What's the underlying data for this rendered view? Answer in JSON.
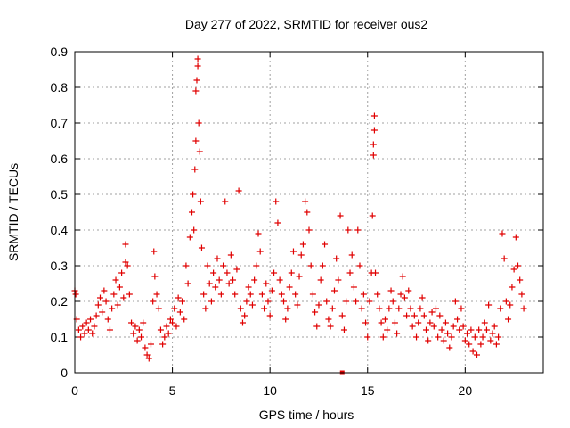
{
  "chart_data": {
    "type": "scatter",
    "title": "Day 277 of 2022, SRMTID for receiver ous2",
    "xlabel": "GPS time / hours",
    "ylabel": "SRMTID / TECUs",
    "xlim": [
      0,
      24
    ],
    "ylim": [
      0,
      0.9
    ],
    "x_ticks": [
      0,
      5,
      10,
      15,
      20
    ],
    "x_tick_labels": [
      "0",
      "5",
      "10",
      "15",
      "20"
    ],
    "y_ticks": [
      0,
      0.1,
      0.2,
      0.3,
      0.4,
      0.5,
      0.6,
      0.7,
      0.8,
      0.9
    ],
    "y_tick_labels": [
      "0",
      "0.1",
      "0.2",
      "0.3",
      "0.4",
      "0.5",
      "0.6",
      "0.7",
      "0.8",
      "0.9"
    ],
    "grid": true,
    "marker": "+",
    "color": "#e00000",
    "series": [
      {
        "name": "SRMTID",
        "points": [
          [
            0.0,
            0.23
          ],
          [
            0.05,
            0.22
          ],
          [
            0.1,
            0.15
          ],
          [
            0.2,
            0.12
          ],
          [
            0.3,
            0.1
          ],
          [
            0.4,
            0.13
          ],
          [
            0.5,
            0.11
          ],
          [
            0.6,
            0.14
          ],
          [
            0.7,
            0.12
          ],
          [
            0.8,
            0.15
          ],
          [
            0.9,
            0.11
          ],
          [
            1.0,
            0.13
          ],
          [
            1.1,
            0.16
          ],
          [
            1.2,
            0.19
          ],
          [
            1.3,
            0.21
          ],
          [
            1.4,
            0.17
          ],
          [
            1.5,
            0.23
          ],
          [
            1.6,
            0.2
          ],
          [
            1.7,
            0.15
          ],
          [
            1.8,
            0.12
          ],
          [
            1.9,
            0.18
          ],
          [
            2.0,
            0.22
          ],
          [
            2.1,
            0.26
          ],
          [
            2.2,
            0.19
          ],
          [
            2.3,
            0.24
          ],
          [
            2.4,
            0.28
          ],
          [
            2.5,
            0.21
          ],
          [
            2.6,
            0.31
          ],
          [
            2.6,
            0.36
          ],
          [
            2.7,
            0.3
          ],
          [
            2.8,
            0.22
          ],
          [
            2.9,
            0.14
          ],
          [
            3.0,
            0.11
          ],
          [
            3.1,
            0.13
          ],
          [
            3.2,
            0.09
          ],
          [
            3.3,
            0.12
          ],
          [
            3.4,
            0.1
          ],
          [
            3.5,
            0.14
          ],
          [
            3.6,
            0.07
          ],
          [
            3.7,
            0.05
          ],
          [
            3.8,
            0.04
          ],
          [
            3.9,
            0.08
          ],
          [
            4.0,
            0.2
          ],
          [
            4.05,
            0.34
          ],
          [
            4.1,
            0.27
          ],
          [
            4.2,
            0.22
          ],
          [
            4.3,
            0.18
          ],
          [
            4.4,
            0.12
          ],
          [
            4.5,
            0.08
          ],
          [
            4.6,
            0.1
          ],
          [
            4.7,
            0.13
          ],
          [
            4.8,
            0.11
          ],
          [
            4.9,
            0.15
          ],
          [
            5.0,
            0.14
          ],
          [
            5.1,
            0.18
          ],
          [
            5.2,
            0.13
          ],
          [
            5.3,
            0.21
          ],
          [
            5.4,
            0.17
          ],
          [
            5.5,
            0.2
          ],
          [
            5.6,
            0.15
          ],
          [
            5.7,
            0.3
          ],
          [
            5.8,
            0.25
          ],
          [
            5.9,
            0.38
          ],
          [
            6.0,
            0.45
          ],
          [
            6.05,
            0.5
          ],
          [
            6.1,
            0.4
          ],
          [
            6.15,
            0.57
          ],
          [
            6.2,
            0.65
          ],
          [
            6.2,
            0.79
          ],
          [
            6.25,
            0.82
          ],
          [
            6.3,
            0.86
          ],
          [
            6.3,
            0.88
          ],
          [
            6.35,
            0.7
          ],
          [
            6.4,
            0.62
          ],
          [
            6.45,
            0.48
          ],
          [
            6.5,
            0.35
          ],
          [
            6.6,
            0.22
          ],
          [
            6.7,
            0.18
          ],
          [
            6.8,
            0.3
          ],
          [
            6.9,
            0.25
          ],
          [
            7.0,
            0.2
          ],
          [
            7.1,
            0.28
          ],
          [
            7.2,
            0.24
          ],
          [
            7.3,
            0.32
          ],
          [
            7.4,
            0.26
          ],
          [
            7.5,
            0.22
          ],
          [
            7.6,
            0.3
          ],
          [
            7.7,
            0.48
          ],
          [
            7.8,
            0.28
          ],
          [
            7.9,
            0.25
          ],
          [
            8.0,
            0.33
          ],
          [
            8.1,
            0.26
          ],
          [
            8.2,
            0.22
          ],
          [
            8.3,
            0.29
          ],
          [
            8.4,
            0.51
          ],
          [
            8.5,
            0.18
          ],
          [
            8.6,
            0.14
          ],
          [
            8.7,
            0.16
          ],
          [
            8.8,
            0.2
          ],
          [
            8.9,
            0.24
          ],
          [
            9.0,
            0.22
          ],
          [
            9.1,
            0.19
          ],
          [
            9.2,
            0.26
          ],
          [
            9.3,
            0.3
          ],
          [
            9.4,
            0.39
          ],
          [
            9.5,
            0.34
          ],
          [
            9.6,
            0.22
          ],
          [
            9.7,
            0.18
          ],
          [
            9.8,
            0.25
          ],
          [
            9.9,
            0.2
          ],
          [
            10.0,
            0.16
          ],
          [
            10.1,
            0.23
          ],
          [
            10.2,
            0.28
          ],
          [
            10.3,
            0.48
          ],
          [
            10.4,
            0.42
          ],
          [
            10.5,
            0.26
          ],
          [
            10.6,
            0.22
          ],
          [
            10.7,
            0.2
          ],
          [
            10.8,
            0.15
          ],
          [
            10.9,
            0.18
          ],
          [
            11.0,
            0.24
          ],
          [
            11.1,
            0.28
          ],
          [
            11.2,
            0.34
          ],
          [
            11.3,
            0.22
          ],
          [
            11.4,
            0.19
          ],
          [
            11.5,
            0.27
          ],
          [
            11.6,
            0.33
          ],
          [
            11.7,
            0.36
          ],
          [
            11.8,
            0.48
          ],
          [
            11.9,
            0.45
          ],
          [
            12.0,
            0.4
          ],
          [
            12.1,
            0.3
          ],
          [
            12.2,
            0.22
          ],
          [
            12.3,
            0.17
          ],
          [
            12.4,
            0.13
          ],
          [
            12.5,
            0.19
          ],
          [
            12.6,
            0.26
          ],
          [
            12.7,
            0.3
          ],
          [
            12.8,
            0.36
          ],
          [
            12.9,
            0.2
          ],
          [
            13.0,
            0.15
          ],
          [
            13.1,
            0.13
          ],
          [
            13.2,
            0.18
          ],
          [
            13.3,
            0.23
          ],
          [
            13.4,
            0.32
          ],
          [
            13.5,
            0.26
          ],
          [
            13.6,
            0.44
          ],
          [
            13.7,
            0.16
          ],
          [
            13.8,
            0.12
          ],
          [
            13.9,
            0.2
          ],
          [
            14.0,
            0.4
          ],
          [
            14.1,
            0.28
          ],
          [
            14.2,
            0.33
          ],
          [
            14.3,
            0.24
          ],
          [
            14.4,
            0.2
          ],
          [
            14.5,
            0.4
          ],
          [
            14.6,
            0.3
          ],
          [
            14.7,
            0.18
          ],
          [
            14.8,
            0.22
          ],
          [
            14.9,
            0.14
          ],
          [
            15.0,
            0.1
          ],
          [
            15.1,
            0.2
          ],
          [
            15.2,
            0.28
          ],
          [
            15.25,
            0.44
          ],
          [
            15.3,
            0.61
          ],
          [
            15.3,
            0.64
          ],
          [
            15.35,
            0.68
          ],
          [
            15.35,
            0.72
          ],
          [
            15.4,
            0.28
          ],
          [
            15.5,
            0.22
          ],
          [
            15.6,
            0.18
          ],
          [
            15.7,
            0.14
          ],
          [
            15.8,
            0.1
          ],
          [
            15.9,
            0.15
          ],
          [
            16.0,
            0.12
          ],
          [
            16.1,
            0.18
          ],
          [
            16.2,
            0.23
          ],
          [
            16.3,
            0.2
          ],
          [
            16.4,
            0.14
          ],
          [
            16.5,
            0.11
          ],
          [
            16.6,
            0.18
          ],
          [
            16.7,
            0.22
          ],
          [
            16.8,
            0.27
          ],
          [
            16.9,
            0.21
          ],
          [
            17.0,
            0.16
          ],
          [
            17.1,
            0.23
          ],
          [
            17.2,
            0.18
          ],
          [
            17.3,
            0.13
          ],
          [
            17.4,
            0.16
          ],
          [
            17.5,
            0.1
          ],
          [
            17.6,
            0.14
          ],
          [
            17.7,
            0.18
          ],
          [
            17.8,
            0.21
          ],
          [
            17.9,
            0.16
          ],
          [
            18.0,
            0.12
          ],
          [
            18.1,
            0.09
          ],
          [
            18.2,
            0.14
          ],
          [
            18.3,
            0.17
          ],
          [
            18.4,
            0.13
          ],
          [
            18.5,
            0.18
          ],
          [
            18.6,
            0.1
          ],
          [
            18.7,
            0.16
          ],
          [
            18.8,
            0.12
          ],
          [
            18.9,
            0.09
          ],
          [
            19.0,
            0.14
          ],
          [
            19.1,
            0.11
          ],
          [
            19.2,
            0.07
          ],
          [
            19.3,
            0.1
          ],
          [
            19.4,
            0.13
          ],
          [
            19.5,
            0.2
          ],
          [
            19.6,
            0.15
          ],
          [
            19.7,
            0.12
          ],
          [
            19.8,
            0.18
          ],
          [
            19.9,
            0.13
          ],
          [
            20.0,
            0.09
          ],
          [
            20.1,
            0.11
          ],
          [
            20.2,
            0.08
          ],
          [
            20.3,
            0.12
          ],
          [
            20.4,
            0.06
          ],
          [
            20.5,
            0.1
          ],
          [
            20.6,
            0.05
          ],
          [
            20.7,
            0.12
          ],
          [
            20.8,
            0.08
          ],
          [
            20.9,
            0.1
          ],
          [
            21.0,
            0.14
          ],
          [
            21.1,
            0.12
          ],
          [
            21.2,
            0.19
          ],
          [
            21.3,
            0.09
          ],
          [
            21.4,
            0.11
          ],
          [
            21.5,
            0.13
          ],
          [
            21.6,
            0.08
          ],
          [
            21.7,
            0.1
          ],
          [
            21.8,
            0.18
          ],
          [
            21.9,
            0.39
          ],
          [
            22.0,
            0.32
          ],
          [
            22.1,
            0.2
          ],
          [
            22.2,
            0.15
          ],
          [
            22.3,
            0.19
          ],
          [
            22.4,
            0.24
          ],
          [
            22.5,
            0.29
          ],
          [
            22.6,
            0.38
          ],
          [
            22.7,
            0.3
          ],
          [
            22.8,
            0.26
          ],
          [
            22.9,
            0.22
          ],
          [
            23.0,
            0.18
          ]
        ]
      }
    ],
    "extra_marker": {
      "x": 13.7,
      "y": 0.0,
      "shape": "square"
    }
  }
}
